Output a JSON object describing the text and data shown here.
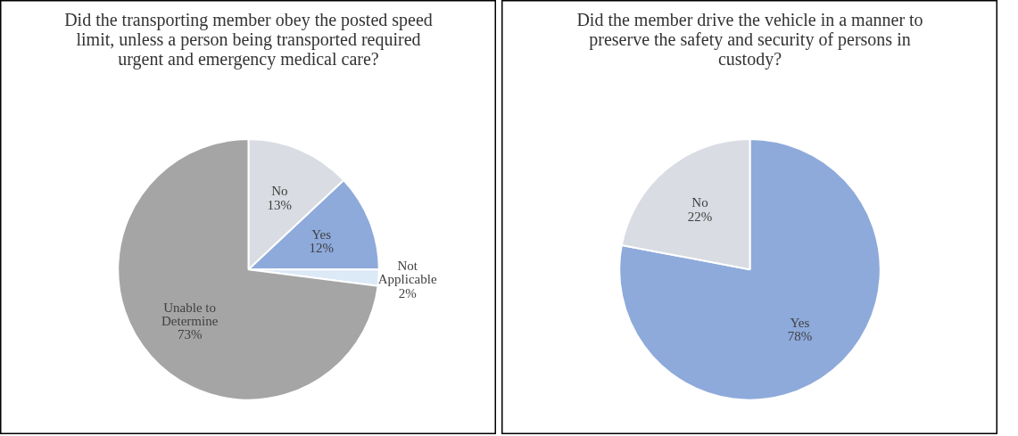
{
  "chart_data": [
    {
      "type": "pie",
      "title": "Did the transporting member obey the posted speed limit, unless a person being transported required urgent and emergency medical care?",
      "categories": [
        "No",
        "Yes",
        "Not Applicable",
        "Unable to Determine"
      ],
      "values": [
        13,
        12,
        2,
        73
      ],
      "value_labels": [
        "13%",
        "12%",
        "2%",
        "73%"
      ],
      "colors": [
        "#d9dce2",
        "#8eaadb",
        "#dce9f7",
        "#a5a5a5"
      ]
    },
    {
      "type": "pie",
      "title": "Did the member drive the vehicle in a manner to preserve the safety and security of persons in custody?",
      "categories": [
        "Yes",
        "No"
      ],
      "values": [
        78,
        22
      ],
      "value_labels": [
        "78%",
        "22%"
      ],
      "colors": [
        "#8eaadb",
        "#d9dce2"
      ]
    }
  ]
}
